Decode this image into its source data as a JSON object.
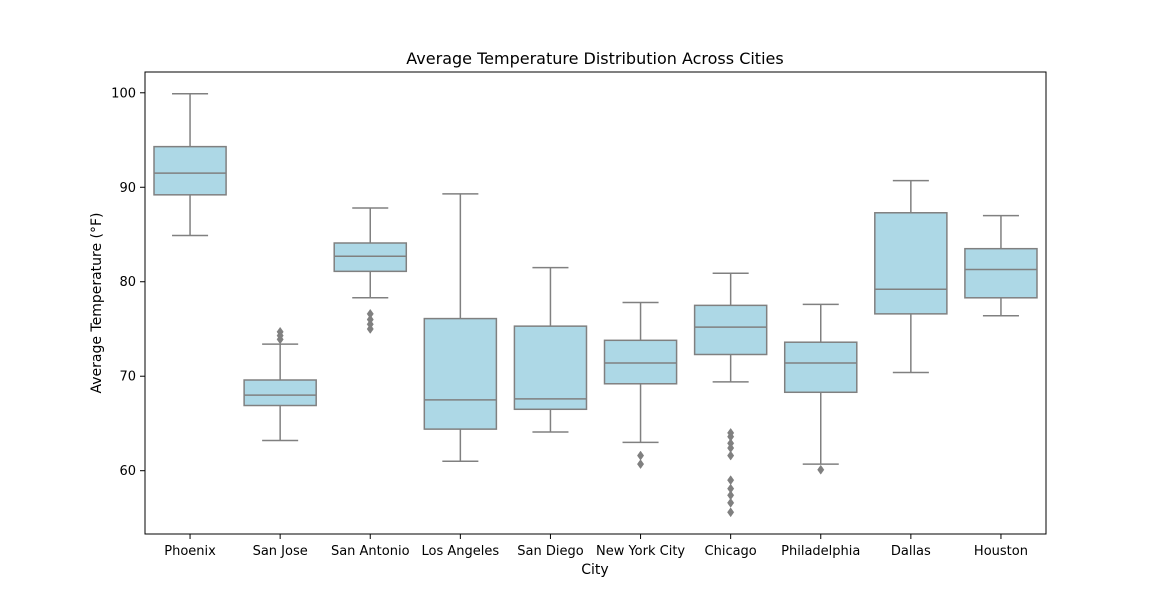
{
  "chart_data": {
    "type": "box",
    "title": "Average Temperature Distribution Across Cities",
    "xlabel": "City",
    "ylabel": "Average Temperature (°F)",
    "ylim": [
      53.3,
      102.2
    ],
    "yticks": [
      60,
      70,
      80,
      90,
      100
    ],
    "grid": false,
    "legend": false,
    "colors": {
      "box_fill": "#add8e6",
      "line": "#808080",
      "outlier": "#808080",
      "axes": "#000000"
    },
    "categories": [
      "Phoenix",
      "San Jose",
      "San Antonio",
      "Los Angeles",
      "San Diego",
      "New York City",
      "Chicago",
      "Philadelphia",
      "Dallas",
      "Houston"
    ],
    "boxes": [
      {
        "category": "Phoenix",
        "whisker_low": 84.9,
        "q1": 89.2,
        "median": 91.5,
        "q3": 94.3,
        "whisker_high": 99.9,
        "outliers": []
      },
      {
        "category": "San Jose",
        "whisker_low": 63.2,
        "q1": 66.9,
        "median": 68.0,
        "q3": 69.6,
        "whisker_high": 73.4,
        "outliers": [
          73.9,
          74.3,
          74.7
        ]
      },
      {
        "category": "San Antonio",
        "whisker_low": 78.3,
        "q1": 81.1,
        "median": 82.7,
        "q3": 84.1,
        "whisker_high": 87.8,
        "outliers": [
          75.0,
          75.5,
          76.0,
          76.6
        ]
      },
      {
        "category": "Los Angeles",
        "whisker_low": 61.0,
        "q1": 64.4,
        "median": 67.5,
        "q3": 76.1,
        "whisker_high": 89.3,
        "outliers": []
      },
      {
        "category": "San Diego",
        "whisker_low": 64.1,
        "q1": 66.5,
        "median": 67.6,
        "q3": 75.3,
        "whisker_high": 81.5,
        "outliers": []
      },
      {
        "category": "New York City",
        "whisker_low": 63.0,
        "q1": 69.2,
        "median": 71.4,
        "q3": 73.8,
        "whisker_high": 77.8,
        "outliers": [
          60.7,
          61.6
        ]
      },
      {
        "category": "Chicago",
        "whisker_low": 69.4,
        "q1": 72.3,
        "median": 75.2,
        "q3": 77.5,
        "whisker_high": 80.9,
        "outliers": [
          55.6,
          56.6,
          57.4,
          58.1,
          59.0,
          61.6,
          62.4,
          62.9,
          63.6,
          64.0
        ]
      },
      {
        "category": "Philadelphia",
        "whisker_low": 60.7,
        "q1": 68.3,
        "median": 71.4,
        "q3": 73.6,
        "whisker_high": 77.6,
        "outliers": [
          60.1
        ]
      },
      {
        "category": "Dallas",
        "whisker_low": 70.4,
        "q1": 76.6,
        "median": 79.2,
        "q3": 87.3,
        "whisker_high": 90.7,
        "outliers": []
      },
      {
        "category": "Houston",
        "whisker_low": 76.4,
        "q1": 78.3,
        "median": 81.3,
        "q3": 83.5,
        "whisker_high": 87.0,
        "outliers": []
      }
    ]
  }
}
